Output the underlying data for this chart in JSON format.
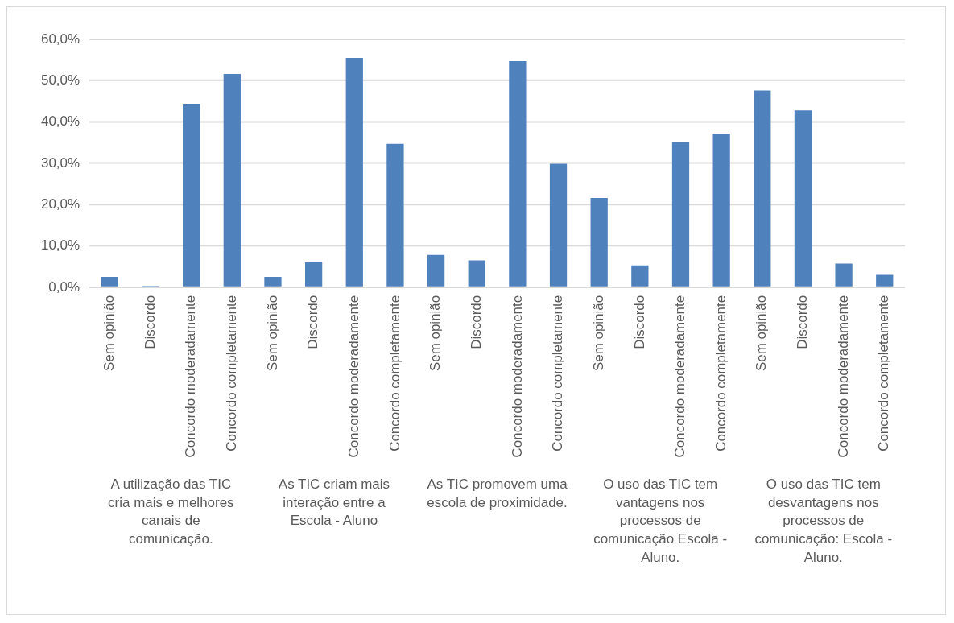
{
  "chart_data": {
    "type": "bar",
    "categories": [
      "Sem opinião",
      "Discordo",
      "Concordo moderadamente",
      "Concordo completamente",
      "Sem opinião",
      "Discordo",
      "Concordo moderadamente",
      "Concordo completamente",
      "Sem opinião",
      "Discordo",
      "Concordo moderadamente",
      "Concordo completamente",
      "Sem opinião",
      "Discordo",
      "Concordo moderadamente",
      "Concordo completamente",
      "Sem opinião",
      "Discordo",
      "Concordo moderadamente",
      "Concordo completamente"
    ],
    "values": [
      2.5,
      0.3,
      44.4,
      51.6,
      2.5,
      6.0,
      55.5,
      34.7,
      7.8,
      6.5,
      54.7,
      29.9,
      21.6,
      5.3,
      35.2,
      37.1,
      47.6,
      42.8,
      5.7,
      3.0
    ],
    "color": "#4f81bd",
    "ylim": [
      0,
      60
    ],
    "yticks": [
      {
        "value": 0,
        "label": "0,0%"
      },
      {
        "value": 10,
        "label": "10,0%"
      },
      {
        "value": 20,
        "label": "20,0%"
      },
      {
        "value": 30,
        "label": "30,0%"
      },
      {
        "value": 40,
        "label": "40,0%"
      },
      {
        "value": 50,
        "label": "50,0%"
      },
      {
        "value": 60,
        "label": "60,0%"
      }
    ],
    "grid": "y",
    "annotations": [
      "A utilização das TIC cria mais e melhores canais de comunicação.",
      "As TIC criam mais interação entre a Escola - Aluno",
      "As TIC promovem uma escola de proximidade.",
      "O uso das TIC tem vantagens nos processos de comunicação Escola - Aluno.",
      "O uso das TIC tem desvantagens nos processos de comunicação: Escola - Aluno."
    ]
  }
}
